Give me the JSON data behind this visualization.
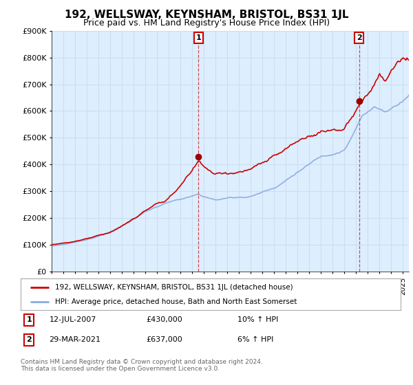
{
  "title": "192, WELLSWAY, KEYNSHAM, BRISTOL, BS31 1JL",
  "subtitle": "Price paid vs. HM Land Registry's House Price Index (HPI)",
  "title_fontsize": 11,
  "subtitle_fontsize": 9,
  "ylim": [
    0,
    900000
  ],
  "yticks": [
    0,
    100000,
    200000,
    300000,
    400000,
    500000,
    600000,
    700000,
    800000,
    900000
  ],
  "ytick_labels": [
    "£0",
    "£100K",
    "£200K",
    "£300K",
    "£400K",
    "£500K",
    "£600K",
    "£700K",
    "£800K",
    "£900K"
  ],
  "background_color": "#ffffff",
  "plot_bg_color": "#ddeeff",
  "grid_color": "#ccddee",
  "line1_color": "#cc0000",
  "line2_color": "#88aadd",
  "sale1_x": 2007.54,
  "sale1_y": 430000,
  "sale2_x": 2021.24,
  "sale2_y": 637000,
  "legend1_text": "192, WELLSWAY, KEYNSHAM, BRISTOL, BS31 1JL (detached house)",
  "legend2_text": "HPI: Average price, detached house, Bath and North East Somerset",
  "annotation1_date": "12-JUL-2007",
  "annotation1_price": "£430,000",
  "annotation1_hpi": "10% ↑ HPI",
  "annotation2_date": "29-MAR-2021",
  "annotation2_price": "£637,000",
  "annotation2_hpi": "6% ↑ HPI",
  "footer": "Contains HM Land Registry data © Crown copyright and database right 2024.\nThis data is licensed under the Open Government Licence v3.0.",
  "xmin": 1995,
  "xmax": 2025.5
}
